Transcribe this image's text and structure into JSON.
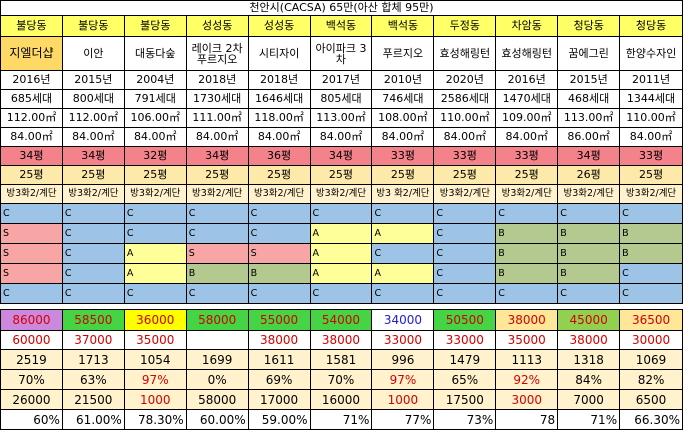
{
  "title": "천안시(CACSA) 65만(아산 합체 95만)",
  "columns": [
    {
      "dong": "불당동",
      "name": "지엘더샵",
      "year": "2016년",
      "units": "685세대",
      "area1": "112.00㎡",
      "area2": "84.00㎡",
      "pyeong1": "34평",
      "pyeong2": "25평",
      "layout": "방3화2/계단",
      "f1": "C",
      "f2": "S",
      "f3": "S",
      "f4": "S",
      "f5": "C",
      "p1": "86000",
      "p2": "60000",
      "p3": "2519",
      "p4": "70%",
      "p5": "26000",
      "p6": "60%"
    },
    {
      "dong": "불당동",
      "name": "이안",
      "year": "2015년",
      "units": "800세대",
      "area1": "112.00㎡",
      "area2": "84.00㎡",
      "pyeong1": "34평",
      "pyeong2": "25평",
      "layout": "방3화2/계단",
      "f1": "C",
      "f2": "C",
      "f3": "C",
      "f4": "C",
      "f5": "C",
      "p1": "58500",
      "p2": "37000",
      "p3": "1713",
      "p4": "63%",
      "p5": "21500",
      "p6": "61.00%"
    },
    {
      "dong": "불당동",
      "name": "대동다숲",
      "year": "2004년",
      "units": "791세대",
      "area1": "106.00㎡",
      "area2": "84.00㎡",
      "pyeong1": "32평",
      "pyeong2": "25평",
      "layout": "방3화2/계단",
      "f1": "C",
      "f2": "C",
      "f3": "A",
      "f4": "A",
      "f5": "C",
      "p1": "36000",
      "p2": "35000",
      "p3": "1054",
      "p4": "97%",
      "p5": "1000",
      "p6": "78.30%"
    },
    {
      "dong": "성성동",
      "name": "레이크 2차 푸르지오",
      "year": "2018년",
      "units": "1730세대",
      "area1": "111.00㎡",
      "area2": "84.00㎡",
      "pyeong1": "34평",
      "pyeong2": "25평",
      "layout": "방3화2/계단",
      "f1": "C",
      "f2": "C",
      "f3": "S",
      "f4": "B",
      "f5": "C",
      "p1": "58000",
      "p2": "",
      "p3": "1699",
      "p4": "0%",
      "p5": "58000",
      "p6": "60.00%"
    },
    {
      "dong": "성성동",
      "name": "시티자이",
      "year": "2018년",
      "units": "1646세대",
      "area1": "118.00㎡",
      "area2": "84.00㎡",
      "pyeong1": "36평",
      "pyeong2": "25평",
      "layout": "방3화2/계단",
      "f1": "C",
      "f2": "C",
      "f3": "S",
      "f4": "B",
      "f5": "C",
      "p1": "55000",
      "p2": "38000",
      "p3": "1611",
      "p4": "69%",
      "p5": "17000",
      "p6": "59.00%"
    },
    {
      "dong": "백석동",
      "name": "아이파크 3차",
      "year": "2017년",
      "units": "805세대",
      "area1": "113.00㎡",
      "area2": "84.00㎡",
      "pyeong1": "34평",
      "pyeong2": "25평",
      "layout": "방3화2/계단",
      "f1": "C",
      "f2": "A",
      "f3": "A",
      "f4": "A",
      "f5": "C",
      "p1": "54000",
      "p2": "38000",
      "p3": "1581",
      "p4": "70%",
      "p5": "16000",
      "p6": "71%"
    },
    {
      "dong": "백석동",
      "name": "푸르지오",
      "year": "2010년",
      "units": "746세대",
      "area1": "108.00㎡",
      "area2": "84.00㎡",
      "pyeong1": "33평",
      "pyeong2": "25평",
      "layout": "방3 화2/계단",
      "f1": "C",
      "f2": "A",
      "f3": "C",
      "f4": "A",
      "f5": "C",
      "p1": "34000",
      "p2": "33000",
      "p3": "996",
      "p4": "97%",
      "p5": "1000",
      "p6": "77%"
    },
    {
      "dong": "두정동",
      "name": "효성해링턴",
      "year": "2020년",
      "units": "2586세대",
      "area1": "110.00㎡",
      "area2": "84.00㎡",
      "pyeong1": "33평",
      "pyeong2": "25평",
      "layout": "방3화2/계단",
      "f1": "C",
      "f2": "C",
      "f3": "C",
      "f4": "C",
      "f5": "C",
      "p1": "50500",
      "p2": "33000",
      "p3": "1479",
      "p4": "65%",
      "p5": "17500",
      "p6": "73%"
    },
    {
      "dong": "차암동",
      "name": "효성해링턴",
      "year": "2016년",
      "units": "1470세대",
      "area1": "109.00㎡",
      "area2": "84.00㎡",
      "pyeong1": "33평",
      "pyeong2": "25평",
      "layout": "방3화2/계단",
      "f1": "C",
      "f2": "B",
      "f3": "B",
      "f4": "B",
      "f5": "C",
      "p1": "38000",
      "p2": "35000",
      "p3": "1113",
      "p4": "92%",
      "p5": "3000",
      "p6": "78"
    },
    {
      "dong": "청당동",
      "name": "꿈에그린",
      "year": "2015년",
      "units": "468세대",
      "area1": "113.00㎡",
      "area2": "86.00㎡",
      "pyeong1": "34평",
      "pyeong2": "26평",
      "layout": "방3화2/계단",
      "f1": "C",
      "f2": "B",
      "f3": "B",
      "f4": "B",
      "f5": "C",
      "p1": "45000",
      "p2": "38000",
      "p3": "1318",
      "p4": "84%",
      "p5": "7000",
      "p6": "71%"
    },
    {
      "dong": "청당동",
      "name": "한양수자인",
      "year": "2011년",
      "units": "1344세대",
      "area1": "110.00㎡",
      "area2": "84.00㎡",
      "pyeong1": "33평",
      "pyeong2": "25평",
      "layout": "방3화2/계단",
      "f1": "C",
      "f2": "B",
      "f3": "B",
      "f4": "C",
      "f5": "C",
      "p1": "36500",
      "p2": "30000",
      "p3": "1069",
      "p4": "82%",
      "p5": "6500",
      "p6": "66.30%"
    }
  ]
}
